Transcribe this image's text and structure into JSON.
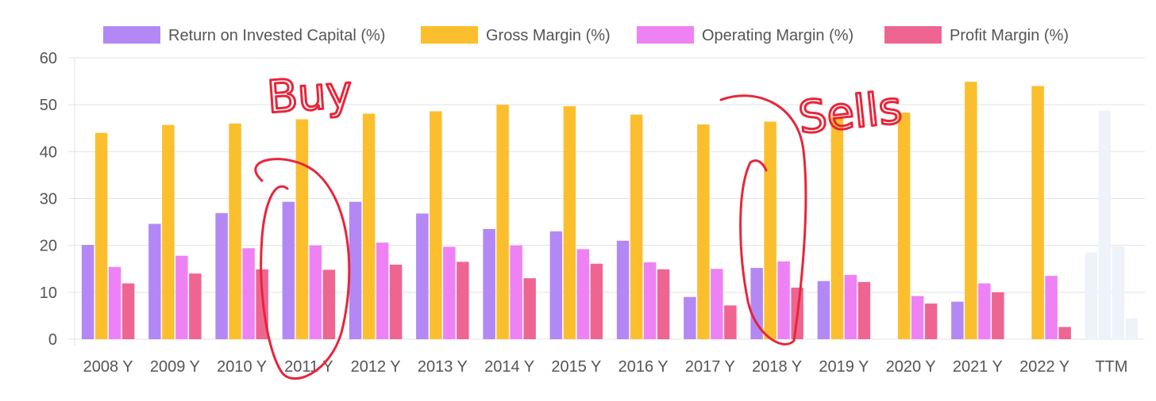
{
  "chart_data": {
    "type": "bar",
    "categories": [
      "2008 Y",
      "2009 Y",
      "2010 Y",
      "2011 Y",
      "2012 Y",
      "2013 Y",
      "2014 Y",
      "2015 Y",
      "2016 Y",
      "2017 Y",
      "2018 Y",
      "2019 Y",
      "2020 Y",
      "2021 Y",
      "2022 Y",
      "TTM"
    ],
    "series": [
      {
        "name": "Return on Invested Capital (%)",
        "color": "#b388f5",
        "values": [
          20.1,
          24.6,
          26.9,
          29.3,
          29.3,
          26.8,
          23.5,
          23.0,
          21.0,
          9.0,
          15.2,
          12.4,
          0,
          8.0,
          0,
          18.5
        ]
      },
      {
        "name": "Gross Margin (%)",
        "color": "#fbbf2e",
        "values": [
          44.0,
          45.7,
          46.0,
          46.9,
          48.1,
          48.6,
          50.0,
          49.7,
          47.9,
          45.8,
          46.4,
          47.4,
          48.3,
          54.9,
          54.0,
          48.7
        ]
      },
      {
        "name": "Operating Margin (%)",
        "color": "#ee82f5",
        "values": [
          15.4,
          17.8,
          19.4,
          20.0,
          20.6,
          19.7,
          20.0,
          19.2,
          16.4,
          15.0,
          16.6,
          13.7,
          9.2,
          11.9,
          13.5,
          19.8
        ]
      },
      {
        "name": "Profit Margin (%)",
        "color": "#ef6591",
        "values": [
          11.9,
          14.0,
          14.9,
          14.8,
          15.9,
          16.5,
          13.0,
          16.1,
          14.9,
          7.2,
          11.0,
          12.2,
          7.6,
          10.0,
          2.6,
          4.5
        ]
      }
    ],
    "faded_categories": [
      "TTM"
    ],
    "faded_color": "#eef2f9",
    "ylim": [
      0,
      60
    ],
    "yticks": [
      "0",
      "10",
      "20",
      "30",
      "40",
      "50",
      "60"
    ],
    "grid": true,
    "legend": "top",
    "annotations": [
      "Buy",
      "Sells"
    ],
    "annotation_color": "#e8253a"
  }
}
